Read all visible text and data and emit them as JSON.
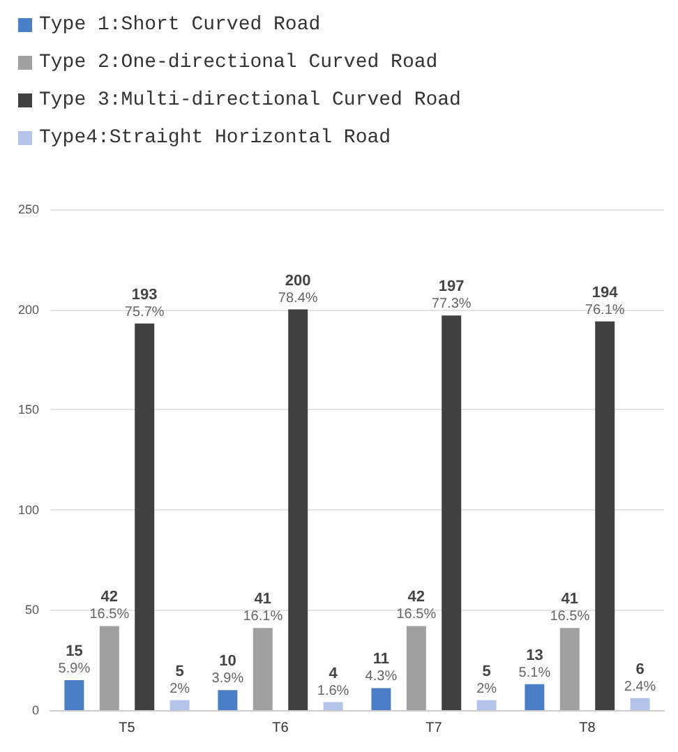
{
  "chart_data": {
    "type": "bar",
    "categories": [
      "T5",
      "T6",
      "T7",
      "T8"
    ],
    "series": [
      {
        "name": "Type 1:Short Curved Road",
        "color": "#4a7fc8",
        "values": [
          15,
          10,
          11,
          13
        ],
        "value_labels": [
          "15\n5.9%",
          "10\n3.9%",
          "11\n4.3%",
          "13\n5.1%"
        ]
      },
      {
        "name": "Type 2:One-directional Curved Road",
        "color": "#a0a0a0",
        "values": [
          42,
          41,
          42,
          41
        ],
        "value_labels": [
          "42\n16.5%",
          "41\n16.1%",
          "42\n16.5%",
          "41\n16.5%"
        ]
      },
      {
        "name": "Type 3:Multi-directional Curved Road",
        "color": "#404040",
        "values": [
          193,
          200,
          197,
          194
        ],
        "value_labels": [
          "193\n75.7%",
          "200\n78.4%",
          "197\n77.3%",
          "194\n76.1%"
        ]
      },
      {
        "name": "Type4:Straight Horizontal Road",
        "color": "#b4c4e8",
        "values": [
          5,
          4,
          5,
          6
        ],
        "value_labels": [
          "5\n2%",
          "4\n1.6%",
          "5\n2%",
          "6\n2.4%"
        ]
      }
    ],
    "ylim": [
      0,
      250
    ],
    "yticks": [
      0,
      50,
      100,
      150,
      200,
      250
    ],
    "grid": "y",
    "legend": "top left"
  }
}
